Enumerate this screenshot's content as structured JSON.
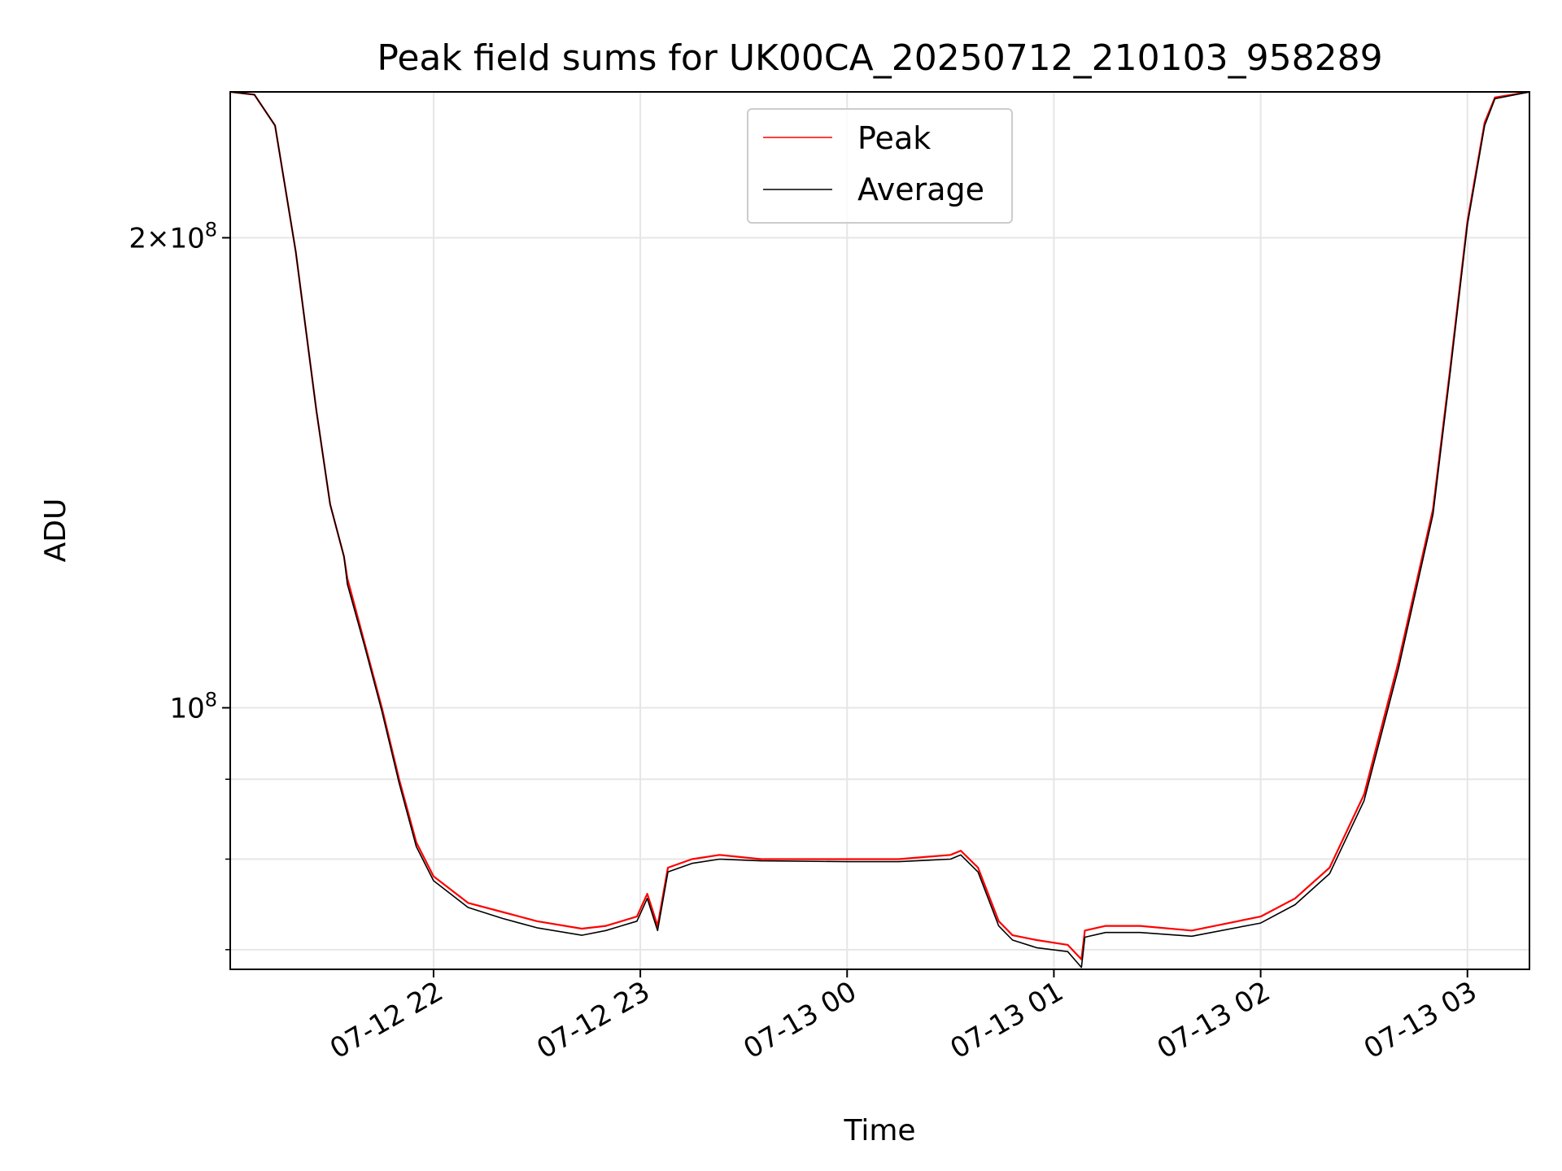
{
  "chart_data": {
    "type": "line",
    "title": "Peak field sums for UK00CA_20250712_210103_958289",
    "xlabel": "Time",
    "ylabel": "ADU",
    "yscale": "log",
    "grid": true,
    "legend_position": "top-center",
    "x_range": [
      "2025-07-12 21:01",
      "2025-07-13 03:18"
    ],
    "y_range": [
      68000000,
      248000000
    ],
    "x_ticks": [
      {
        "t": "2025-07-12 22:00",
        "label": "07-12 22"
      },
      {
        "t": "2025-07-12 23:00",
        "label": "07-12 23"
      },
      {
        "t": "2025-07-13 00:00",
        "label": "07-13 00"
      },
      {
        "t": "2025-07-13 01:00",
        "label": "07-13 01"
      },
      {
        "t": "2025-07-13 02:00",
        "label": "07-13 02"
      },
      {
        "t": "2025-07-13 03:00",
        "label": "07-13 03"
      }
    ],
    "y_major_ticks": [
      {
        "value": 100000000,
        "mantissa": "",
        "exponent": "8"
      },
      {
        "value": 200000000,
        "mantissa": "2",
        "exponent": "8"
      }
    ],
    "y_minor_gridlines": [
      70000000,
      80000000,
      90000000
    ],
    "series": [
      {
        "name": "Peak",
        "color": "#ff0000",
        "x": [
          "2025-07-12 21:01",
          "2025-07-12 21:08",
          "2025-07-12 21:14",
          "2025-07-12 21:20",
          "2025-07-12 21:26",
          "2025-07-12 21:30",
          "2025-07-12 21:34",
          "2025-07-12 21:35",
          "2025-07-12 21:40",
          "2025-07-12 21:45",
          "2025-07-12 21:50",
          "2025-07-12 21:55",
          "2025-07-12 22:00",
          "2025-07-12 22:10",
          "2025-07-12 22:20",
          "2025-07-12 22:30",
          "2025-07-12 22:43",
          "2025-07-12 22:50",
          "2025-07-12 22:59",
          "2025-07-12 23:02",
          "2025-07-12 23:05",
          "2025-07-12 23:08",
          "2025-07-12 23:15",
          "2025-07-12 23:23",
          "2025-07-12 23:35",
          "2025-07-13 00:00",
          "2025-07-13 00:15",
          "2025-07-13 00:30",
          "2025-07-13 00:33",
          "2025-07-13 00:38",
          "2025-07-13 00:44",
          "2025-07-13 00:48",
          "2025-07-13 00:55",
          "2025-07-13 01:04",
          "2025-07-13 01:08",
          "2025-07-13 01:09",
          "2025-07-13 01:15",
          "2025-07-13 01:25",
          "2025-07-13 01:40",
          "2025-07-13 02:00",
          "2025-07-13 02:10",
          "2025-07-13 02:20",
          "2025-07-13 02:30",
          "2025-07-13 02:40",
          "2025-07-13 02:50",
          "2025-07-13 02:55",
          "2025-07-13 03:00",
          "2025-07-13 03:05",
          "2025-07-13 03:08",
          "2025-07-13 03:18"
        ],
        "values": [
          248000000,
          247000000,
          236000000,
          196000000,
          155000000,
          135000000,
          125000000,
          121000000,
          110000000,
          100000000,
          90000000,
          82000000,
          78000000,
          75000000,
          74000000,
          73000000,
          72200000,
          72500000,
          73500000,
          76000000,
          72500000,
          79000000,
          80000000,
          80500000,
          80000000,
          80000000,
          80000000,
          80500000,
          81000000,
          79000000,
          73000000,
          71500000,
          71000000,
          70500000,
          69000000,
          72000000,
          72500000,
          72500000,
          72000000,
          73500000,
          75500000,
          79000000,
          88000000,
          107000000,
          134000000,
          165000000,
          205000000,
          237000000,
          246000000,
          248000000
        ]
      },
      {
        "name": "Average",
        "color": "#000000",
        "x": [
          "2025-07-12 21:01",
          "2025-07-12 21:08",
          "2025-07-12 21:14",
          "2025-07-12 21:20",
          "2025-07-12 21:26",
          "2025-07-12 21:30",
          "2025-07-12 21:34",
          "2025-07-12 21:35",
          "2025-07-12 21:40",
          "2025-07-12 21:45",
          "2025-07-12 21:50",
          "2025-07-12 21:55",
          "2025-07-12 22:00",
          "2025-07-12 22:10",
          "2025-07-12 22:20",
          "2025-07-12 22:30",
          "2025-07-12 22:43",
          "2025-07-12 22:50",
          "2025-07-12 22:59",
          "2025-07-12 23:02",
          "2025-07-12 23:05",
          "2025-07-12 23:08",
          "2025-07-12 23:15",
          "2025-07-12 23:23",
          "2025-07-12 23:35",
          "2025-07-13 00:00",
          "2025-07-13 00:15",
          "2025-07-13 00:30",
          "2025-07-13 00:33",
          "2025-07-13 00:38",
          "2025-07-13 00:44",
          "2025-07-13 00:48",
          "2025-07-13 00:55",
          "2025-07-13 01:04",
          "2025-07-13 01:08",
          "2025-07-13 01:09",
          "2025-07-13 01:15",
          "2025-07-13 01:25",
          "2025-07-13 01:40",
          "2025-07-13 02:00",
          "2025-07-13 02:10",
          "2025-07-13 02:20",
          "2025-07-13 02:30",
          "2025-07-13 02:40",
          "2025-07-13 02:50",
          "2025-07-13 02:55",
          "2025-07-13 03:00",
          "2025-07-13 03:05",
          "2025-07-13 03:08",
          "2025-07-13 03:18"
        ],
        "values": [
          248000000,
          247000000,
          236000000,
          196000000,
          155000000,
          135000000,
          125000000,
          120000000,
          109500000,
          99500000,
          89500000,
          81500000,
          77500000,
          74500000,
          73300000,
          72300000,
          71500000,
          72000000,
          73000000,
          75500000,
          72000000,
          78500000,
          79500000,
          80000000,
          79800000,
          79700000,
          79700000,
          80000000,
          80500000,
          78500000,
          72500000,
          71000000,
          70200000,
          69800000,
          68200000,
          71300000,
          71800000,
          71800000,
          71400000,
          72800000,
          74800000,
          78300000,
          87200000,
          106000000,
          133000000,
          164000000,
          204000000,
          236000000,
          245500000,
          248000000
        ]
      }
    ]
  }
}
